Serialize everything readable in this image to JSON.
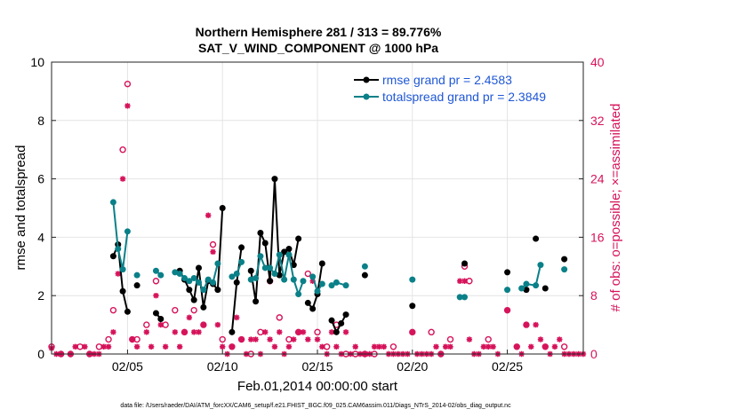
{
  "chart_data": {
    "type": "line",
    "title": "Northern Hemisphere 281 / 313 = 89.776%",
    "subtitle": "SAT_V_WIND_COMPONENT @ 1000 hPa",
    "xlabel": "Feb.01,2014 00:00:00 start",
    "ylabel_left": "rmse and totalspread",
    "ylabel_right": "# of obs: o=possible; ×=assimilated",
    "footnote": "data file: /Users/raeder/DAI/ATM_forcXX/CAM6_setup/f.e21.FHIST_BGC.f09_025.CAM6assim.011/Diags_NTrS_2014-02/obs_diag_output.nc",
    "xlim": [
      1,
      29
    ],
    "ylim_left": [
      0,
      10
    ],
    "ylim_right": [
      0,
      40
    ],
    "x_ticks": [
      {
        "value": 5,
        "label": "02/05"
      },
      {
        "value": 10,
        "label": "02/10"
      },
      {
        "value": 15,
        "label": "02/15"
      },
      {
        "value": 20,
        "label": "02/20"
      },
      {
        "value": 25,
        "label": "02/25"
      }
    ],
    "y_left_ticks": [
      "0",
      "2",
      "4",
      "6",
      "8",
      "10"
    ],
    "y_right_ticks": [
      "0",
      "8",
      "16",
      "24",
      "32",
      "40"
    ],
    "colors": {
      "rmse": "#000000",
      "spread": "#0a8088",
      "obs": "#d6125a",
      "legend_text": "#1f57d6"
    },
    "legend": [
      {
        "label": "rmse grand pr = 2.4583"
      },
      {
        "label": "totalspread grand pr = 2.3849"
      }
    ],
    "series": [
      {
        "name": "rmse",
        "axis": "left",
        "points": [
          [
            4.25,
            3.35
          ],
          [
            4.5,
            3.75
          ],
          [
            4.75,
            2.15
          ],
          [
            5,
            1.45
          ],
          [
            null,
            null
          ],
          [
            5.5,
            2.35
          ],
          [
            null,
            null
          ],
          [
            6.5,
            1.4
          ],
          [
            6.75,
            1.2
          ],
          [
            null,
            null
          ],
          [
            7.75,
            2.85
          ],
          [
            8,
            2.55
          ],
          [
            8.25,
            2.2
          ],
          [
            8.5,
            1.85
          ],
          [
            8.75,
            2.95
          ],
          [
            9,
            1.6
          ],
          [
            9.25,
            2.5
          ],
          [
            9.5,
            2.4
          ],
          [
            9.75,
            2.2
          ],
          [
            10,
            5.0
          ],
          [
            null,
            null
          ],
          [
            10.5,
            0.75
          ],
          [
            10.75,
            2.45
          ],
          [
            11,
            3.65
          ],
          [
            null,
            null
          ],
          [
            11.5,
            2.85
          ],
          [
            11.75,
            1.8
          ],
          [
            12,
            4.15
          ],
          [
            12.25,
            3.8
          ],
          [
            12.5,
            2.5
          ],
          [
            12.75,
            6.0
          ],
          [
            13,
            2.7
          ],
          [
            13.25,
            3.5
          ],
          [
            13.5,
            3.6
          ],
          [
            13.75,
            3.05
          ],
          [
            14,
            3.95
          ],
          [
            null,
            null
          ],
          [
            14.5,
            1.75
          ],
          [
            14.75,
            1.55
          ],
          [
            15,
            2.05
          ],
          [
            15.25,
            3.1
          ],
          [
            null,
            null
          ],
          [
            15.75,
            1.15
          ],
          [
            16,
            0.75
          ],
          [
            16.25,
            1.05
          ],
          [
            16.5,
            1.35
          ],
          [
            null,
            null
          ],
          [
            17.5,
            2.7
          ],
          [
            null,
            null
          ],
          [
            20,
            1.65
          ],
          [
            null,
            null
          ],
          [
            22.75,
            3.1
          ],
          [
            null,
            null
          ],
          [
            25,
            2.8
          ],
          [
            null,
            null
          ],
          [
            26.5,
            3.95
          ],
          [
            null,
            null
          ],
          [
            26,
            2.2
          ],
          [
            null,
            null
          ],
          [
            27,
            2.25
          ],
          [
            null,
            null
          ],
          [
            28,
            3.25
          ]
        ]
      },
      {
        "name": "totalspread",
        "axis": "left",
        "points": [
          [
            4.25,
            5.2
          ],
          [
            4.5,
            3.6
          ],
          [
            4.75,
            2.9
          ],
          [
            5,
            4.2
          ],
          [
            null,
            null
          ],
          [
            5.5,
            2.7
          ],
          [
            null,
            null
          ],
          [
            6.5,
            2.85
          ],
          [
            6.75,
            2.7
          ],
          [
            null,
            null
          ],
          [
            7.5,
            2.8
          ],
          [
            7.75,
            2.75
          ],
          [
            8,
            2.6
          ],
          [
            8.25,
            2.5
          ],
          [
            8.5,
            2.6
          ],
          [
            8.75,
            2.45
          ],
          [
            9,
            2.2
          ],
          [
            9.25,
            2.55
          ],
          [
            9.5,
            2.45
          ],
          [
            9.75,
            3.1
          ],
          [
            null,
            null
          ],
          [
            10.5,
            2.65
          ],
          [
            10.75,
            2.75
          ],
          [
            11,
            3.15
          ],
          [
            null,
            null
          ],
          [
            11.5,
            2.55
          ],
          [
            11.75,
            2.6
          ],
          [
            12,
            3.35
          ],
          [
            12.25,
            2.95
          ],
          [
            12.5,
            2.95
          ],
          [
            12.75,
            2.75
          ],
          [
            13,
            3.4
          ],
          [
            13.25,
            2.55
          ],
          [
            13.5,
            3.4
          ],
          [
            13.75,
            2.55
          ],
          [
            14,
            2.05
          ],
          [
            14.25,
            2.5
          ],
          [
            null,
            null
          ],
          [
            14.75,
            2.65
          ],
          [
            15,
            2.15
          ],
          [
            15.25,
            2.4
          ],
          [
            null,
            null
          ],
          [
            15.75,
            2.35
          ],
          [
            16,
            2.45
          ],
          [
            16.5,
            2.35
          ],
          [
            null,
            null
          ],
          [
            17.5,
            3.0
          ],
          [
            null,
            null
          ],
          [
            20,
            2.55
          ],
          [
            null,
            null
          ],
          [
            22.5,
            1.95
          ],
          [
            22.75,
            1.95
          ],
          [
            null,
            null
          ],
          [
            25,
            2.2
          ],
          [
            null,
            null
          ],
          [
            25.75,
            2.25
          ],
          [
            26,
            2.4
          ],
          [
            26.5,
            2.35
          ],
          [
            26.75,
            3.05
          ],
          [
            null,
            null
          ],
          [
            28,
            2.9
          ]
        ]
      }
    ],
    "obs_possible": [
      [
        1,
        1.0
      ],
      [
        1.5,
        0
      ],
      [
        2,
        0
      ],
      [
        2.5,
        1
      ],
      [
        3,
        0
      ],
      [
        3.5,
        1
      ],
      [
        4,
        2
      ],
      [
        4.25,
        6
      ],
      [
        4.75,
        28
      ],
      [
        5,
        37
      ],
      [
        5.25,
        2
      ],
      [
        5.5,
        2
      ],
      [
        6,
        4
      ],
      [
        6.5,
        10
      ],
      [
        7,
        4
      ],
      [
        7.5,
        6
      ],
      [
        8,
        3
      ],
      [
        8.5,
        6
      ],
      [
        9,
        4
      ],
      [
        9.5,
        15
      ],
      [
        10,
        2
      ],
      [
        10.5,
        1
      ],
      [
        11,
        2
      ],
      [
        11.5,
        0
      ],
      [
        12,
        3
      ],
      [
        12.5,
        10
      ],
      [
        13,
        5
      ],
      [
        13.5,
        2
      ],
      [
        14,
        3
      ],
      [
        14.5,
        11
      ],
      [
        15,
        3
      ],
      [
        15.5,
        1
      ],
      [
        16,
        4
      ],
      [
        16.5,
        0
      ],
      [
        17,
        0
      ],
      [
        17.5,
        0
      ],
      [
        18,
        0
      ],
      [
        19,
        1
      ],
      [
        20,
        3
      ],
      [
        21,
        3
      ],
      [
        21.5,
        0
      ],
      [
        22,
        2
      ],
      [
        22.75,
        12
      ],
      [
        23,
        10
      ],
      [
        24,
        2
      ],
      [
        25,
        6
      ],
      [
        25.5,
        1
      ],
      [
        26,
        4
      ],
      [
        27,
        1
      ],
      [
        28,
        1
      ]
    ],
    "obs_assimilated": [
      [
        1,
        0.8
      ],
      [
        1.25,
        0
      ],
      [
        1.5,
        0
      ],
      [
        2,
        0
      ],
      [
        2.25,
        1
      ],
      [
        2.75,
        1
      ],
      [
        3,
        0
      ],
      [
        3.25,
        0
      ],
      [
        3.5,
        0
      ],
      [
        3.75,
        1
      ],
      [
        4,
        1
      ],
      [
        4.25,
        3
      ],
      [
        4.5,
        11
      ],
      [
        4.75,
        24
      ],
      [
        5,
        34
      ],
      [
        5.25,
        2
      ],
      [
        5.5,
        1
      ],
      [
        6,
        3
      ],
      [
        6.25,
        1
      ],
      [
        6.5,
        8
      ],
      [
        6.75,
        4
      ],
      [
        7,
        1
      ],
      [
        7.5,
        3
      ],
      [
        7.75,
        1
      ],
      [
        8,
        3
      ],
      [
        8.25,
        5
      ],
      [
        8.5,
        3
      ],
      [
        8.75,
        3
      ],
      [
        9,
        4
      ],
      [
        9.25,
        19
      ],
      [
        9.5,
        14
      ],
      [
        9.75,
        4
      ],
      [
        10,
        1
      ],
      [
        10.25,
        0
      ],
      [
        10.5,
        1
      ],
      [
        10.75,
        5
      ],
      [
        11,
        2
      ],
      [
        11.25,
        0
      ],
      [
        11.5,
        2
      ],
      [
        11.75,
        2
      ],
      [
        12,
        0
      ],
      [
        12.25,
        3
      ],
      [
        12.5,
        2
      ],
      [
        12.75,
        1
      ],
      [
        13,
        3
      ],
      [
        13.25,
        0
      ],
      [
        13.5,
        1
      ],
      [
        13.75,
        2
      ],
      [
        14,
        3
      ],
      [
        14.25,
        3
      ],
      [
        14.5,
        2
      ],
      [
        14.75,
        10
      ],
      [
        15,
        2
      ],
      [
        15.25,
        1
      ],
      [
        15.5,
        0
      ],
      [
        15.75,
        3
      ],
      [
        16,
        1
      ],
      [
        16.25,
        0
      ],
      [
        16.5,
        3
      ],
      [
        16.75,
        0
      ],
      [
        17,
        1
      ],
      [
        17.25,
        0
      ],
      [
        17.5,
        0
      ],
      [
        17.75,
        0
      ],
      [
        18,
        1
      ],
      [
        18.25,
        1
      ],
      [
        18.5,
        1
      ],
      [
        18.75,
        0
      ],
      [
        19,
        0
      ],
      [
        19.25,
        0
      ],
      [
        19.5,
        0
      ],
      [
        19.75,
        0
      ],
      [
        20,
        3
      ],
      [
        20.25,
        0
      ],
      [
        20.5,
        0
      ],
      [
        20.75,
        0
      ],
      [
        21,
        0
      ],
      [
        21.25,
        1
      ],
      [
        21.5,
        0
      ],
      [
        21.75,
        1
      ],
      [
        22,
        1
      ],
      [
        22.5,
        10
      ],
      [
        22.75,
        10
      ],
      [
        23,
        2
      ],
      [
        23.25,
        0
      ],
      [
        23.5,
        0
      ],
      [
        23.75,
        1
      ],
      [
        24,
        1
      ],
      [
        24.25,
        1
      ],
      [
        24.5,
        0
      ],
      [
        25,
        6
      ],
      [
        25.5,
        1
      ],
      [
        25.75,
        0
      ],
      [
        26,
        4
      ],
      [
        26.25,
        1
      ],
      [
        26.5,
        4
      ],
      [
        26.75,
        2
      ],
      [
        27,
        1
      ],
      [
        27.25,
        0
      ],
      [
        27.5,
        1
      ],
      [
        27.75,
        2
      ],
      [
        28,
        0
      ],
      [
        28.25,
        0
      ],
      [
        28.5,
        0
      ],
      [
        28.75,
        0
      ],
      [
        29,
        0
      ]
    ]
  }
}
